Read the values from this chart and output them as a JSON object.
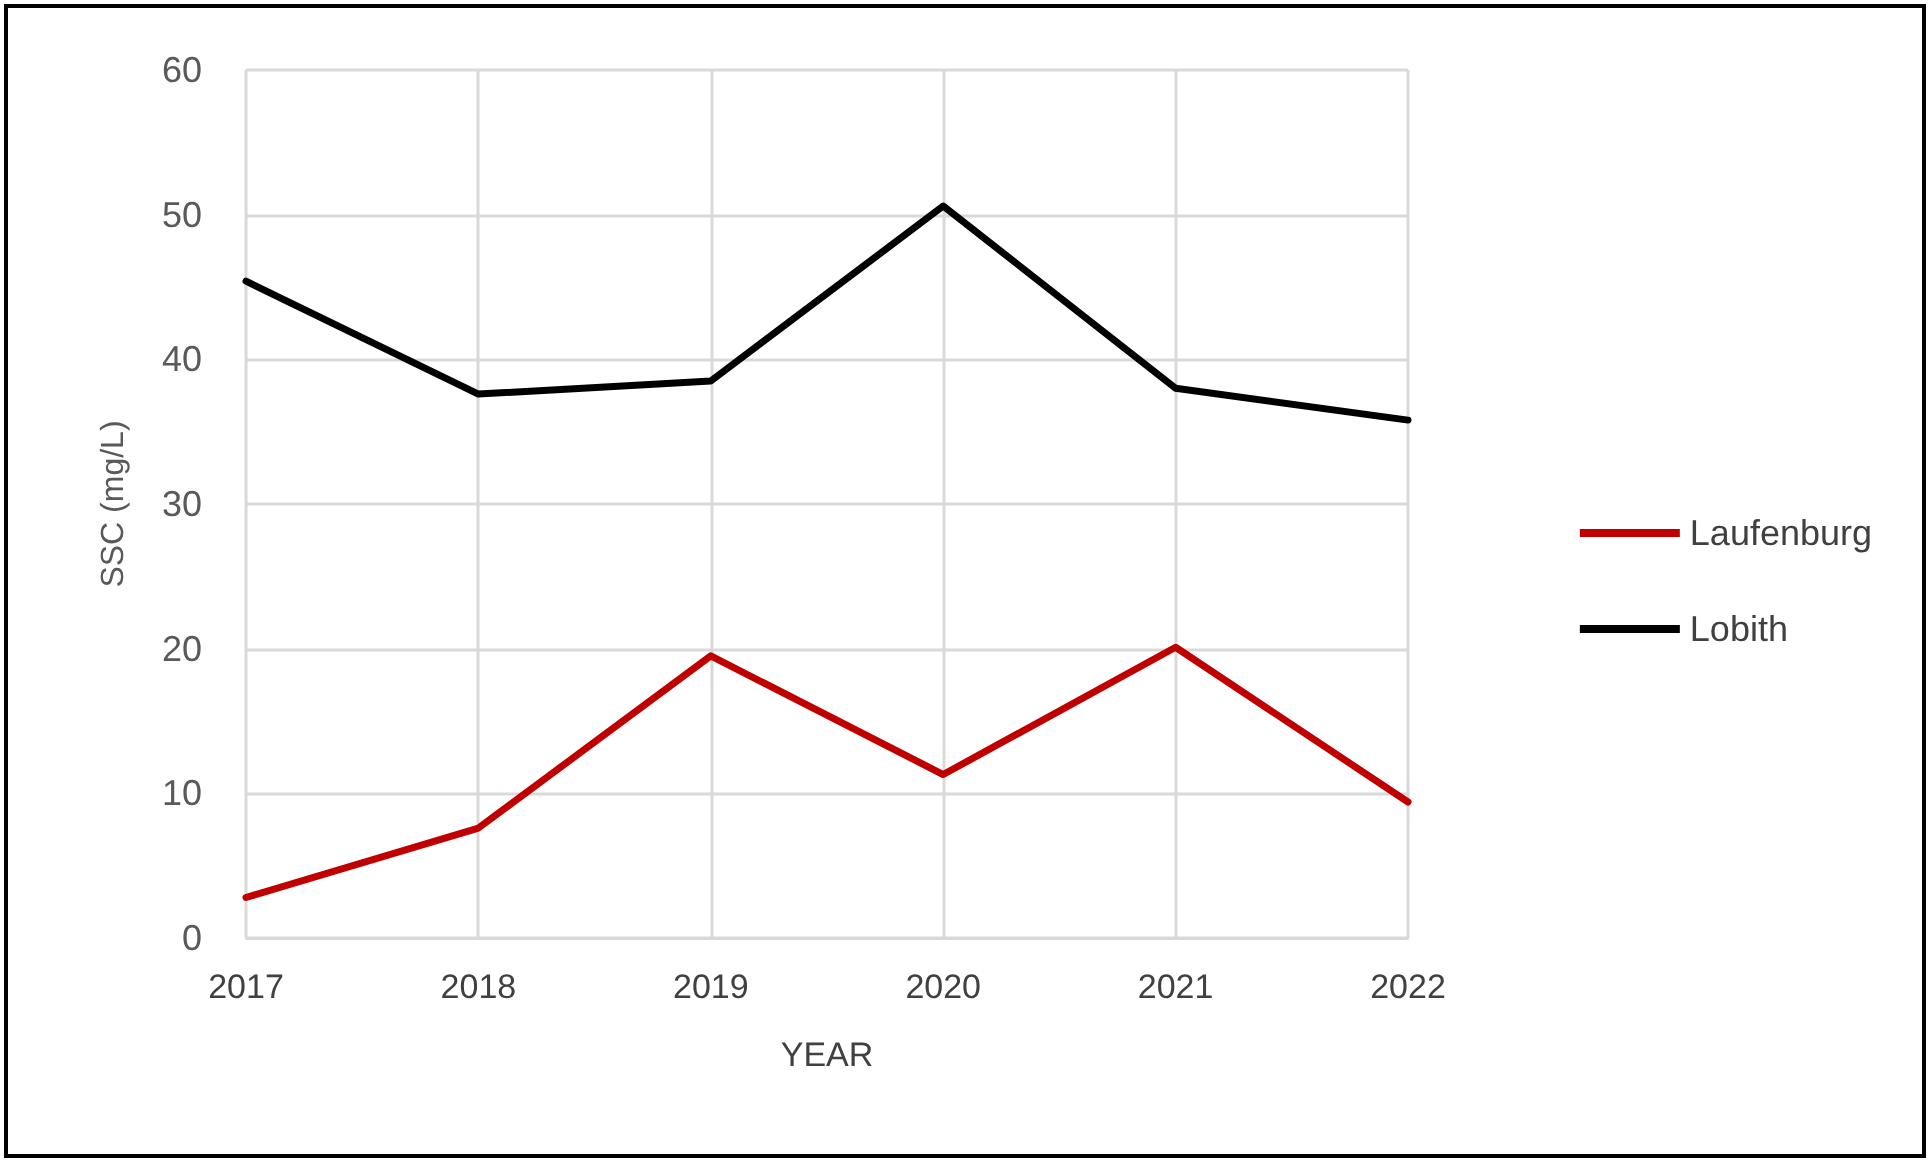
{
  "chart_data": {
    "type": "line",
    "xlabel": "YEAR",
    "ylabel": "SSC (mg/L)",
    "x": [
      2017,
      2018,
      2019,
      2020,
      2021,
      2022
    ],
    "series": [
      {
        "name": "Laufenburg",
        "color": "#c00000",
        "values": [
          2.8,
          7.6,
          19.5,
          11.3,
          20.1,
          9.4
        ]
      },
      {
        "name": "Lobith",
        "color": "#000000",
        "values": [
          45.4,
          37.6,
          38.5,
          50.6,
          38.0,
          35.8
        ]
      }
    ],
    "xlim": [
      2017,
      2022
    ],
    "xticks": [
      2017,
      2018,
      2019,
      2020,
      2021,
      2022
    ],
    "ylim": [
      0,
      60
    ],
    "yticks": [
      0,
      10,
      20,
      30,
      40,
      50,
      60
    ],
    "grid": true,
    "legend": "right",
    "marker": "none",
    "line_style": "solid"
  }
}
